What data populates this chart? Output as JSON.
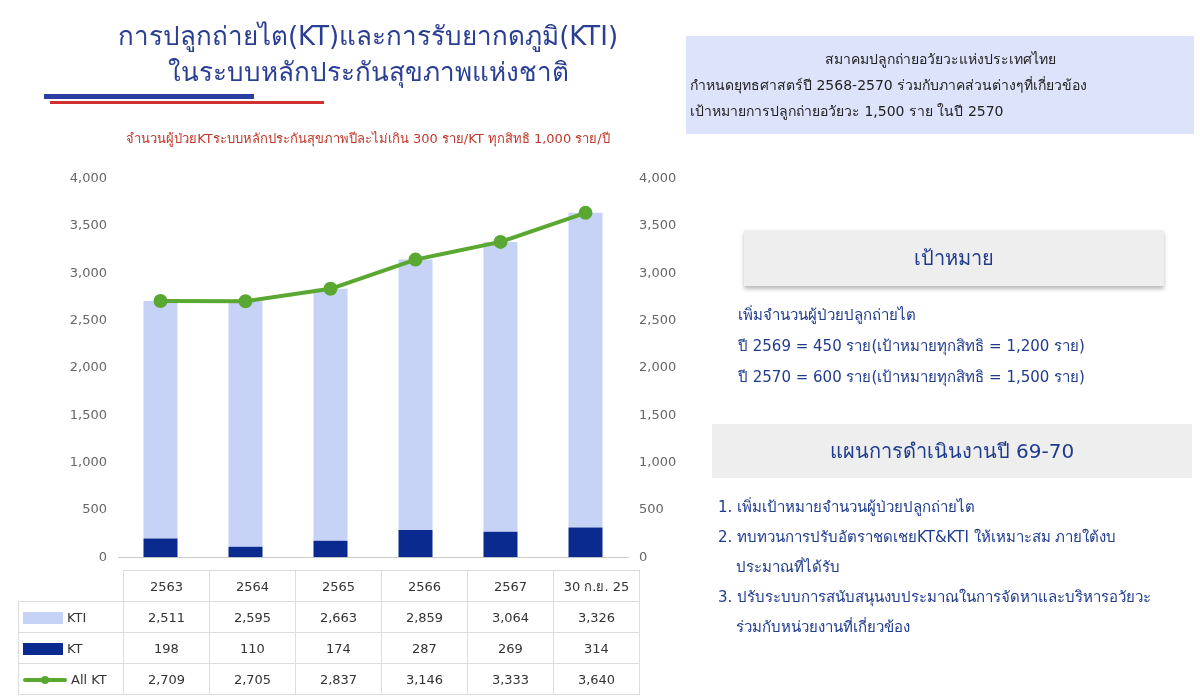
{
  "chart_data": {
    "type": "bar",
    "title": "การปลูกถ่ายไต(KT)และการรับยากดภูมิ(KTI)\nในระบบหลักประกันสุขภาพแห่งชาติ",
    "subtitle": "จำนวนผู้ป่วยKTระบบหลักประกันสุขภาพปีละไม่เกิน 300 ราย/KT ทุกสิทธิ 1,000 ราย/ปี",
    "categories": [
      "2563",
      "2564",
      "2565",
      "2566",
      "2567",
      "30 ก.ย. 25"
    ],
    "stacked": true,
    "series": [
      {
        "name": "KT",
        "color": "#0b2a8f",
        "values": [
          198,
          110,
          174,
          287,
          269,
          314
        ],
        "value_labels": [
          "198",
          "110",
          "174",
          "287",
          "269",
          "314"
        ]
      },
      {
        "name": "KTI",
        "color": "#c6d3f6",
        "values": [
          2511,
          2595,
          2663,
          2859,
          3064,
          3326
        ],
        "value_labels": [
          "2,511",
          "2,595",
          "2,663",
          "2,859",
          "3,064",
          "3,326"
        ]
      },
      {
        "name": "All KT",
        "type": "line",
        "color": "#5aa832",
        "values": [
          2709,
          2705,
          2837,
          3146,
          3333,
          3640
        ],
        "value_labels": [
          "2,709",
          "2,705",
          "2,837",
          "3,146",
          "3,333",
          "3,640"
        ]
      }
    ],
    "marker": "circle",
    "ylim": [
      0,
      4000
    ],
    "yticks": [
      0,
      500,
      {
        "value": 1000,
        "label": "1,000"
      },
      {
        "value": 1500,
        "label": "1,500"
      },
      {
        "value": 2000,
        "label": "2,000"
      },
      {
        "value": 2500,
        "label": "2,500"
      },
      {
        "value": 3000,
        "label": "3,000"
      },
      {
        "value": 3500,
        "label": "3,500"
      },
      {
        "value": 4000,
        "label": "4,000"
      }
    ],
    "y2lim": [
      0,
      4000
    ],
    "y2ticks": [
      0,
      500,
      {
        "value": 1000,
        "label": "1,000"
      },
      {
        "value": 1500,
        "label": "1,500"
      },
      {
        "value": 2000,
        "label": "2,000"
      },
      {
        "value": 2500,
        "label": "2,500"
      },
      {
        "value": 3000,
        "label": "3,000"
      },
      {
        "value": 3500,
        "label": "3,500"
      },
      {
        "value": 4000,
        "label": "4,000"
      }
    ],
    "legend": "bottom",
    "annotations": [
      "สมาคมปลูกถ่ายอวัยวะแห่งประเทศไทย",
      "กำหนดยุทธศาสตร์ปี 2568-2570 ร่วมกับภาคส่วนต่างๆที่เกี่ยวข้อง",
      "เป้าหมายการปลูกถ่ายอวัยวะ 1,500 ราย ในปี 2570",
      "เป้าหมาย",
      "เพิ่มจำนวนผู้ป่วยปลูกถ่ายไต",
      "ปี 2569 = 450 ราย(เป้าหมายทุกสิทธิ = 1,200 ราย)",
      "ปี 2570 = 600 ราย(เป้าหมายทุกสิทธิ = 1,500 ราย)",
      "แผนการดำเนินงานปี 69-70",
      "1. เพิ่มเป้าหมายจำนวนผู้ป่วยปลูกถ่ายไต",
      "2. ทบทวนการปรับอัตราชดเชยKT&KTI ให้เหมาะสม ภายใต้งบประมาณที่ได้รับ",
      "3. ปรับระบบการสนับสนุนงบประมาณในการจัดหาและบริหารอวัยวะร่วมกับหน่วยงานที่เกี่ยวข้อง"
    ]
  }
}
